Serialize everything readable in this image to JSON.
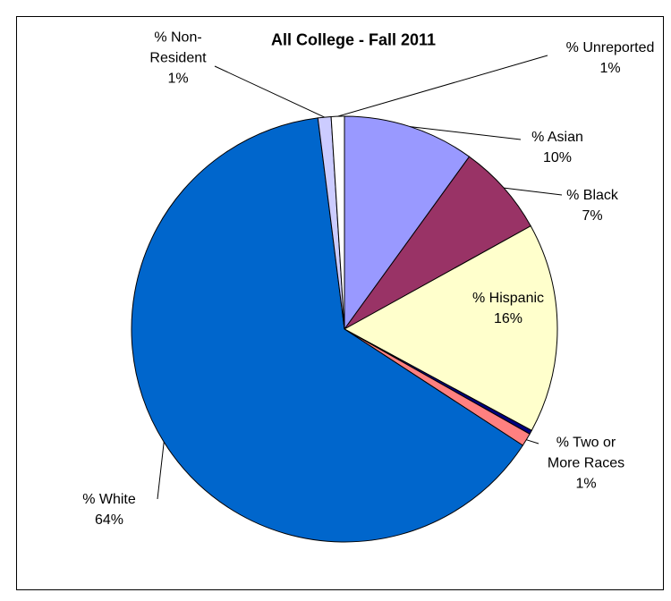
{
  "chart_data": {
    "type": "pie",
    "title": "All College - Fall 2011",
    "categories": [
      "% Asian",
      "% Black",
      "% Hispanic",
      null,
      "% Two or More Races",
      "% White",
      "% Non-Resident",
      "% Unreported"
    ],
    "values": [
      10,
      7,
      16,
      0.3,
      1,
      64,
      1,
      1
    ],
    "value_labels": [
      "10%",
      "7%",
      "16%",
      null,
      "1%",
      "64%",
      "1%",
      "1%"
    ],
    "colors": [
      "#9999ff",
      "#993366",
      "#ffffcc",
      "#000080",
      "#ff8080",
      "#0066cc",
      "#ccccff",
      "#ffffff"
    ]
  }
}
